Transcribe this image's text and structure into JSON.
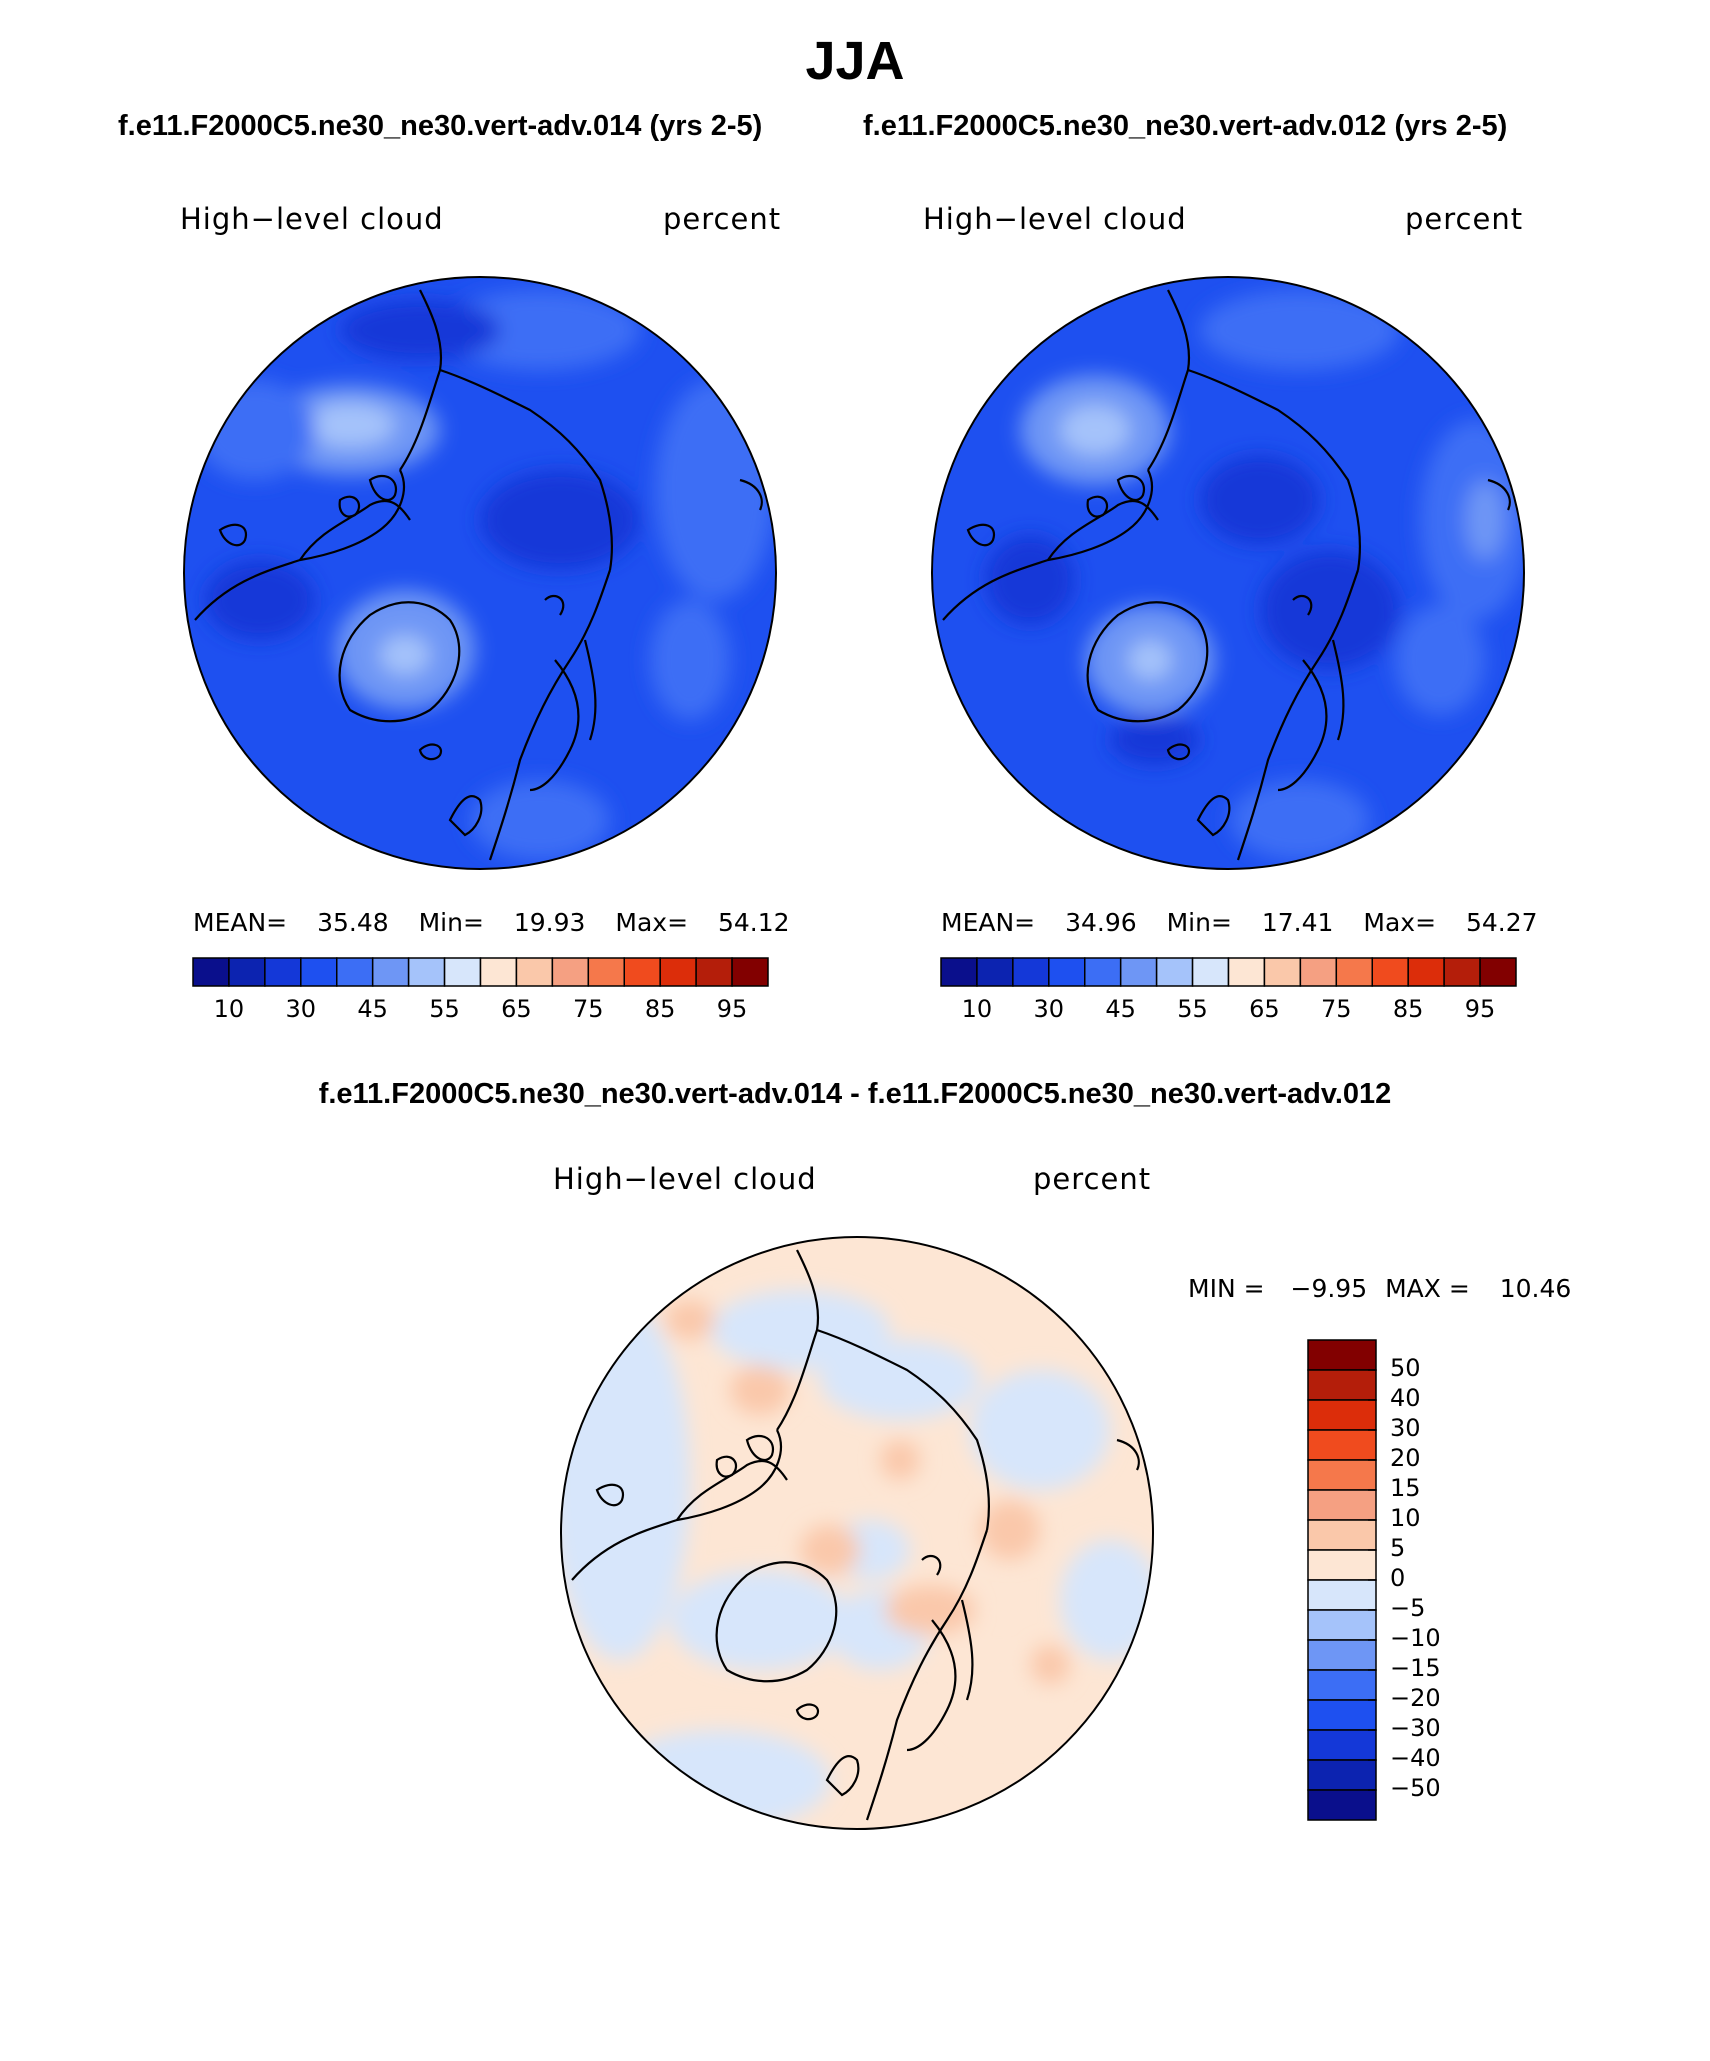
{
  "title": "JJA",
  "panels": [
    {
      "case": "f.e11.F2000C5.ne30_ne30.vert-adv.014 (yrs 2-5)",
      "variable": "High−level cloud",
      "units": "percent",
      "mean_label": "MEAN=",
      "mean": "35.48",
      "min_label": "Min=",
      "min": "19.93",
      "max_label": "Max=",
      "max": "54.12"
    },
    {
      "case": "f.e11.F2000C5.ne30_ne30.vert-adv.012 (yrs 2-5)",
      "variable": "High−level cloud",
      "units": "percent",
      "mean_label": "MEAN=",
      "mean": "34.96",
      "min_label": "Min=",
      "min": "17.41",
      "max_label": "Max=",
      "max": "54.27"
    }
  ],
  "diff": {
    "title": "f.e11.F2000C5.ne30_ne30.vert-adv.014 - f.e11.F2000C5.ne30_ne30.vert-adv.012",
    "variable": "High−level cloud",
    "units": "percent",
    "min_label": "MIN =",
    "min": "−9.95",
    "max_label": "MAX =",
    "max": "10.46"
  },
  "colorbar": {
    "colors": [
      "#0a0f8c",
      "#0c23b0",
      "#1438d8",
      "#1e50f0",
      "#3c6ef5",
      "#6e96f5",
      "#a5c3fa",
      "#d7e6fb",
      "#fde6d4",
      "#fac8aa",
      "#f5a082",
      "#f5784b",
      "#f04b1e",
      "#dc2d0a",
      "#b41e0a",
      "#820000"
    ],
    "tick_labels": [
      "10",
      "30",
      "45",
      "55",
      "65",
      "75",
      "85",
      "95"
    ]
  },
  "diff_colorbar": {
    "colors": [
      "#820000",
      "#b41e0a",
      "#dc2d0a",
      "#f04b1e",
      "#f5784b",
      "#f5a082",
      "#fac8aa",
      "#fde6d4",
      "#d7e6fb",
      "#a5c3fa",
      "#6e96f5",
      "#3c6ef5",
      "#1e50f0",
      "#1438d8",
      "#0c23b0",
      "#0a0f8c"
    ],
    "tick_labels": [
      "50",
      "40",
      "30",
      "20",
      "15",
      "10",
      "5",
      "0",
      "−5",
      "−10",
      "−15",
      "−20",
      "−30",
      "−40",
      "−50"
    ]
  }
}
